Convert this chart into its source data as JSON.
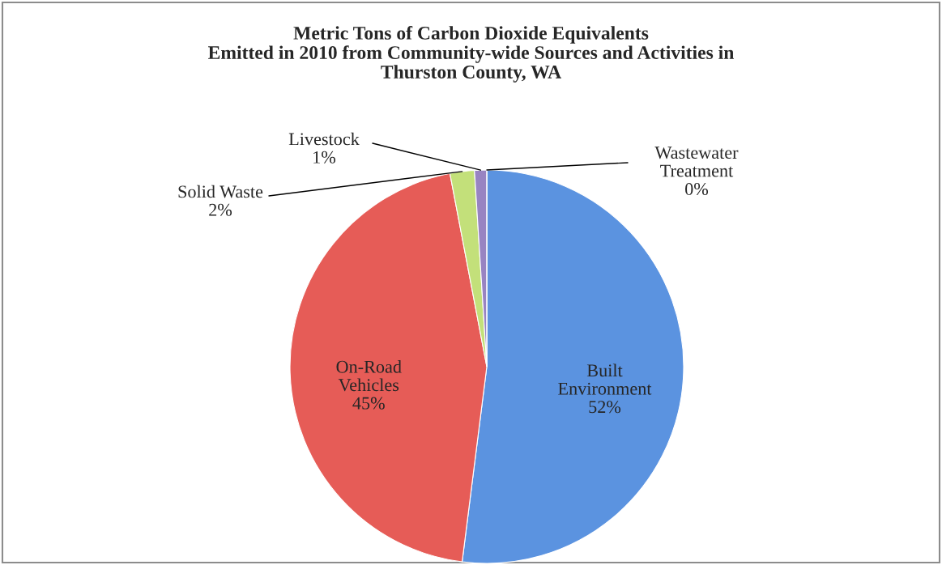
{
  "chart_data": {
    "type": "pie",
    "title": "Metric Tons of Carbon Dioxide Equivalents\nEmitted in 2010 from Community-wide Sources and Activities in\nThurston County, WA",
    "categories": [
      "Built\nEnvironment",
      "On-Road\nVehicles",
      "Solid Waste",
      "Livestock",
      "Wastewater\nTreatment"
    ],
    "values": [
      52,
      45,
      2,
      1,
      0
    ],
    "value_labels": [
      "52%",
      "45%",
      "2%",
      "1%",
      "0%"
    ],
    "colors": [
      "#5b93e0",
      "#e65c57",
      "#c3e07a",
      "#9884c2",
      "#7fb8e0"
    ]
  }
}
